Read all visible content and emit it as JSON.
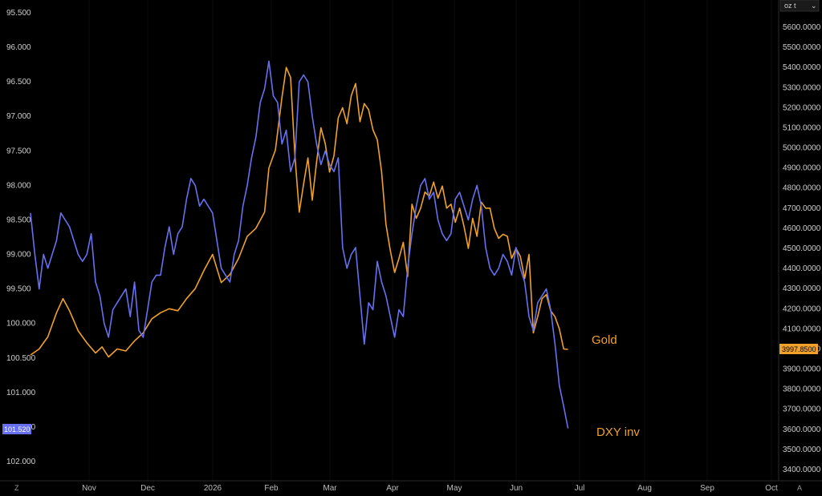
{
  "chart_data": {
    "type": "line",
    "title": "",
    "x_ticks": [
      "Nov",
      "Dec",
      "2026",
      "Feb",
      "Mar",
      "Apr",
      "May",
      "Jun",
      "Jul",
      "Aug",
      "Sep",
      "Oct"
    ],
    "left_axis": {
      "ticks": [
        "95.500",
        "96.000",
        "96.500",
        "97.000",
        "97.500",
        "98.000",
        "98.500",
        "99.000",
        "99.500",
        "100.000",
        "100.500",
        "101.000",
        "101.500",
        "102.000"
      ],
      "inverted": true,
      "range": [
        95.5,
        102.0
      ]
    },
    "right_axis": {
      "unit_label": "oz t",
      "ticks": [
        "5600.0000",
        "5500.0000",
        "5400.0000",
        "5300.0000",
        "5200.0000",
        "5100.0000",
        "5000.0000",
        "4900.0000",
        "4800.0000",
        "4700.0000",
        "4600.0000",
        "4500.0000",
        "4400.0000",
        "4300.0000",
        "4200.0000",
        "4100.0000",
        "4000.0000",
        "3900.0000",
        "3800.0000",
        "3700.0000",
        "3600.0000",
        "3500.0000",
        "3400.0000"
      ],
      "range": [
        3400,
        5600
      ]
    },
    "series": [
      {
        "name": "Gold",
        "axis": "right",
        "color": "#f0a12c",
        "last_value_label": "3997.8500",
        "points": [
          [
            0,
            3970
          ],
          [
            4,
            4000
          ],
          [
            8,
            4060
          ],
          [
            12,
            4180
          ],
          [
            15,
            4250
          ],
          [
            18,
            4190
          ],
          [
            22,
            4090
          ],
          [
            26,
            4030
          ],
          [
            30,
            3980
          ],
          [
            33,
            4010
          ],
          [
            36,
            3960
          ],
          [
            40,
            4000
          ],
          [
            44,
            3990
          ],
          [
            48,
            4040
          ],
          [
            52,
            4080
          ],
          [
            56,
            4150
          ],
          [
            60,
            4180
          ],
          [
            64,
            4200
          ],
          [
            68,
            4190
          ],
          [
            72,
            4250
          ],
          [
            76,
            4300
          ],
          [
            80,
            4390
          ],
          [
            84,
            4470
          ],
          [
            88,
            4330
          ],
          [
            92,
            4370
          ],
          [
            96,
            4450
          ],
          [
            100,
            4560
          ],
          [
            104,
            4600
          ],
          [
            108,
            4680
          ],
          [
            110,
            4900
          ],
          [
            113,
            4990
          ],
          [
            116,
            5250
          ],
          [
            118,
            5400
          ],
          [
            120,
            5350
          ],
          [
            122,
            4960
          ],
          [
            124,
            4680
          ],
          [
            126,
            4820
          ],
          [
            128,
            4950
          ],
          [
            130,
            4740
          ],
          [
            132,
            4930
          ],
          [
            134,
            5100
          ],
          [
            136,
            5020
          ],
          [
            138,
            4880
          ],
          [
            140,
            4960
          ],
          [
            142,
            5150
          ],
          [
            144,
            5200
          ],
          [
            146,
            5120
          ],
          [
            148,
            5260
          ],
          [
            150,
            5320
          ],
          [
            152,
            5130
          ],
          [
            154,
            5220
          ],
          [
            156,
            5190
          ],
          [
            158,
            5090
          ],
          [
            160,
            5040
          ],
          [
            162,
            4880
          ],
          [
            164,
            4620
          ],
          [
            166,
            4490
          ],
          [
            168,
            4380
          ],
          [
            170,
            4450
          ],
          [
            172,
            4530
          ],
          [
            174,
            4360
          ],
          [
            176,
            4720
          ],
          [
            178,
            4650
          ],
          [
            180,
            4700
          ],
          [
            182,
            4780
          ],
          [
            184,
            4760
          ],
          [
            186,
            4830
          ],
          [
            188,
            4750
          ],
          [
            190,
            4810
          ],
          [
            192,
            4700
          ],
          [
            194,
            4720
          ],
          [
            196,
            4630
          ],
          [
            198,
            4700
          ],
          [
            200,
            4610
          ],
          [
            202,
            4500
          ],
          [
            204,
            4650
          ],
          [
            206,
            4560
          ],
          [
            208,
            4730
          ],
          [
            210,
            4700
          ],
          [
            212,
            4700
          ],
          [
            214,
            4600
          ],
          [
            216,
            4550
          ],
          [
            218,
            4570
          ],
          [
            220,
            4560
          ],
          [
            222,
            4450
          ],
          [
            224,
            4500
          ],
          [
            226,
            4460
          ],
          [
            228,
            4350
          ],
          [
            230,
            4470
          ],
          [
            232,
            4080
          ],
          [
            234,
            4160
          ],
          [
            236,
            4250
          ],
          [
            238,
            4270
          ],
          [
            240,
            4190
          ],
          [
            242,
            4160
          ],
          [
            244,
            4100
          ],
          [
            246,
            4000
          ],
          [
            248,
            3997.85
          ]
        ]
      },
      {
        "name": "DXY inv",
        "axis": "left",
        "color": "#6670f0",
        "last_value_label": "101.520",
        "points": [
          [
            0,
            98.4
          ],
          [
            2,
            99.0
          ],
          [
            4,
            99.5
          ],
          [
            6,
            99.0
          ],
          [
            8,
            99.2
          ],
          [
            10,
            99.0
          ],
          [
            12,
            98.8
          ],
          [
            14,
            98.4
          ],
          [
            16,
            98.5
          ],
          [
            18,
            98.6
          ],
          [
            20,
            98.8
          ],
          [
            22,
            99.0
          ],
          [
            24,
            99.1
          ],
          [
            26,
            99.0
          ],
          [
            28,
            98.7
          ],
          [
            30,
            99.4
          ],
          [
            32,
            99.6
          ],
          [
            34,
            100.0
          ],
          [
            36,
            100.2
          ],
          [
            38,
            99.8
          ],
          [
            40,
            99.7
          ],
          [
            42,
            99.6
          ],
          [
            44,
            99.5
          ],
          [
            46,
            99.9
          ],
          [
            48,
            99.4
          ],
          [
            50,
            100.1
          ],
          [
            52,
            100.2
          ],
          [
            54,
            99.8
          ],
          [
            56,
            99.4
          ],
          [
            58,
            99.3
          ],
          [
            60,
            99.3
          ],
          [
            62,
            98.9
          ],
          [
            64,
            98.6
          ],
          [
            66,
            99.0
          ],
          [
            68,
            98.7
          ],
          [
            70,
            98.6
          ],
          [
            72,
            98.2
          ],
          [
            74,
            97.9
          ],
          [
            76,
            98.0
          ],
          [
            78,
            98.3
          ],
          [
            80,
            98.2
          ],
          [
            82,
            98.3
          ],
          [
            84,
            98.4
          ],
          [
            86,
            98.8
          ],
          [
            88,
            99.2
          ],
          [
            90,
            99.3
          ],
          [
            92,
            99.4
          ],
          [
            94,
            99.0
          ],
          [
            96,
            98.8
          ],
          [
            98,
            98.3
          ],
          [
            100,
            98.0
          ],
          [
            102,
            97.6
          ],
          [
            104,
            97.3
          ],
          [
            106,
            96.8
          ],
          [
            108,
            96.6
          ],
          [
            110,
            96.2
          ],
          [
            112,
            96.7
          ],
          [
            114,
            96.8
          ],
          [
            116,
            97.4
          ],
          [
            118,
            97.2
          ],
          [
            120,
            97.8
          ],
          [
            122,
            97.6
          ],
          [
            124,
            96.5
          ],
          [
            126,
            96.4
          ],
          [
            128,
            96.5
          ],
          [
            130,
            97.0
          ],
          [
            132,
            97.4
          ],
          [
            134,
            97.7
          ],
          [
            136,
            97.5
          ],
          [
            138,
            97.7
          ],
          [
            140,
            97.8
          ],
          [
            142,
            97.6
          ],
          [
            144,
            98.9
          ],
          [
            146,
            99.2
          ],
          [
            148,
            99.0
          ],
          [
            150,
            98.9
          ],
          [
            152,
            99.6
          ],
          [
            154,
            100.3
          ],
          [
            156,
            99.7
          ],
          [
            158,
            99.8
          ],
          [
            160,
            99.1
          ],
          [
            162,
            99.4
          ],
          [
            164,
            99.6
          ],
          [
            166,
            99.9
          ],
          [
            168,
            100.2
          ],
          [
            170,
            99.8
          ],
          [
            172,
            99.9
          ],
          [
            174,
            99.2
          ],
          [
            176,
            98.7
          ],
          [
            178,
            98.3
          ],
          [
            180,
            98.0
          ],
          [
            182,
            97.9
          ],
          [
            184,
            98.2
          ],
          [
            186,
            98.1
          ],
          [
            188,
            98.5
          ],
          [
            190,
            98.7
          ],
          [
            192,
            98.8
          ],
          [
            194,
            98.7
          ],
          [
            196,
            98.2
          ],
          [
            198,
            98.1
          ],
          [
            200,
            98.3
          ],
          [
            202,
            98.5
          ],
          [
            204,
            98.2
          ],
          [
            206,
            98.0
          ],
          [
            208,
            98.3
          ],
          [
            210,
            98.9
          ],
          [
            212,
            99.2
          ],
          [
            214,
            99.3
          ],
          [
            216,
            99.2
          ],
          [
            218,
            99.0
          ],
          [
            220,
            99.1
          ],
          [
            222,
            99.3
          ],
          [
            224,
            98.9
          ],
          [
            226,
            99.2
          ],
          [
            228,
            99.4
          ],
          [
            230,
            99.9
          ],
          [
            232,
            100.1
          ],
          [
            234,
            99.7
          ],
          [
            236,
            99.6
          ],
          [
            238,
            99.5
          ],
          [
            240,
            99.8
          ],
          [
            242,
            100.3
          ],
          [
            244,
            100.9
          ],
          [
            246,
            101.2
          ],
          [
            248,
            101.52
          ]
        ]
      }
    ],
    "series_labels": [
      "Gold",
      "DXY inv"
    ],
    "grid": false,
    "legend": "inline-right"
  },
  "corner": {
    "bottom_left": "Z",
    "bottom_right": "A"
  }
}
